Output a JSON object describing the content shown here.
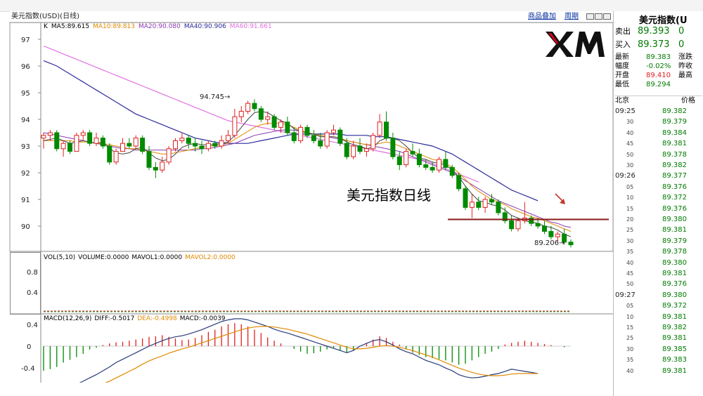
{
  "header": {
    "symbol_label": "美元指数(USD)(日线)",
    "commodity_link": "商品叠加",
    "period_link": "周期"
  },
  "price_pane": {
    "ma_legend": [
      {
        "text": "K",
        "color": "#000000"
      },
      {
        "text": "MA5:89.615",
        "color": "#000000"
      },
      {
        "text": "MA10:89.813",
        "color": "#e08a00"
      },
      {
        "text": "MA20:90.080",
        "color": "#8a3bb0"
      },
      {
        "text": "MA40:90.906",
        "color": "#2a2a9a"
      },
      {
        "text": "MA60:91.661",
        "color": "#e070e0"
      }
    ],
    "high_label": "94.745",
    "low_label": "89.206",
    "annotation": "美元指数日线"
  },
  "volume_pane": {
    "legend": [
      {
        "text": "VOL(5,10)",
        "color": "#000000"
      },
      {
        "text": "VOLUME:0.0000",
        "color": "#000000"
      },
      {
        "text": "MAVOL1:0.0000",
        "color": "#000000"
      },
      {
        "text": "MAVOL2:0.0000",
        "color": "#e08a00"
      }
    ]
  },
  "macd_pane": {
    "legend": [
      {
        "text": "MACD(12,26,9)",
        "color": "#000000"
      },
      {
        "text": "DIFF:-0.5017",
        "color": "#000000"
      },
      {
        "text": "DEA:-0.4998",
        "color": "#e08a00"
      },
      {
        "text": "MACD:-0.0039",
        "color": "#000000"
      }
    ]
  },
  "colors": {
    "up": "#e02020",
    "down": "#008a00",
    "hline": "#8b1a1a"
  },
  "chart_data": {
    "type": "candlestick",
    "price_axis": {
      "ticks": [
        97,
        96,
        95,
        94,
        93,
        92,
        91,
        90
      ]
    },
    "volume_axis": {
      "ticks": [
        "0.8",
        "0.4"
      ]
    },
    "macd_axis": {
      "ticks": [
        "0.4",
        "0",
        "-0.4"
      ]
    },
    "horizontal_line": 90.25,
    "candles": [
      [
        93.3,
        93.5,
        92.9,
        93.4
      ],
      [
        93.4,
        93.6,
        93.2,
        93.5
      ],
      [
        93.5,
        93.6,
        92.8,
        92.9
      ],
      [
        92.9,
        93.2,
        92.6,
        93.1
      ],
      [
        93.1,
        93.2,
        92.7,
        92.8
      ],
      [
        92.8,
        93.5,
        92.8,
        93.4
      ],
      [
        93.4,
        93.6,
        93.2,
        93.5
      ],
      [
        93.5,
        93.6,
        93.0,
        93.1
      ],
      [
        93.1,
        93.5,
        93.0,
        93.3
      ],
      [
        93.3,
        93.4,
        92.9,
        93.0
      ],
      [
        93.0,
        93.1,
        92.3,
        92.4
      ],
      [
        92.4,
        92.9,
        92.3,
        92.8
      ],
      [
        92.8,
        93.3,
        92.8,
        93.1
      ],
      [
        93.1,
        93.3,
        92.9,
        93.0
      ],
      [
        93.0,
        93.4,
        92.9,
        93.3
      ],
      [
        93.3,
        93.4,
        92.7,
        92.8
      ],
      [
        92.8,
        93.0,
        92.1,
        92.2
      ],
      [
        92.2,
        92.4,
        91.8,
        92.1
      ],
      [
        92.1,
        92.6,
        92.0,
        92.4
      ],
      [
        92.4,
        93.0,
        92.3,
        92.9
      ],
      [
        92.9,
        93.3,
        92.8,
        93.2
      ],
      [
        93.2,
        93.5,
        93.1,
        93.3
      ],
      [
        93.3,
        93.4,
        92.9,
        93.1
      ],
      [
        93.1,
        93.3,
        92.8,
        93.0
      ],
      [
        93.0,
        93.2,
        92.7,
        92.9
      ],
      [
        92.9,
        93.2,
        92.8,
        93.1
      ],
      [
        93.1,
        93.2,
        92.9,
        93.0
      ],
      [
        93.0,
        93.4,
        92.9,
        93.2
      ],
      [
        93.2,
        93.6,
        93.1,
        93.4
      ],
      [
        93.4,
        94.4,
        93.3,
        94.1
      ],
      [
        94.1,
        94.5,
        93.9,
        94.3
      ],
      [
        94.3,
        94.7,
        94.2,
        94.6
      ],
      [
        94.6,
        94.75,
        94.3,
        94.4
      ],
      [
        94.4,
        94.5,
        93.9,
        94.0
      ],
      [
        94.0,
        94.3,
        93.8,
        94.1
      ],
      [
        94.1,
        94.2,
        93.6,
        93.7
      ],
      [
        93.7,
        94.0,
        93.5,
        93.9
      ],
      [
        93.9,
        94.1,
        93.4,
        93.5
      ],
      [
        93.5,
        93.7,
        93.1,
        93.2
      ],
      [
        93.2,
        93.8,
        93.1,
        93.7
      ],
      [
        93.7,
        93.8,
        93.3,
        93.4
      ],
      [
        93.4,
        93.6,
        93.1,
        93.2
      ],
      [
        93.2,
        93.5,
        92.9,
        93.0
      ],
      [
        93.0,
        93.6,
        92.9,
        93.5
      ],
      [
        93.5,
        93.8,
        93.4,
        93.6
      ],
      [
        93.6,
        93.7,
        93.0,
        93.1
      ],
      [
        93.1,
        93.3,
        92.5,
        92.6
      ],
      [
        92.6,
        93.2,
        92.5,
        93.0
      ],
      [
        93.0,
        93.3,
        92.7,
        92.8
      ],
      [
        92.8,
        93.1,
        92.6,
        92.9
      ],
      [
        92.9,
        93.5,
        92.8,
        93.4
      ],
      [
        93.4,
        94.2,
        93.3,
        93.9
      ],
      [
        93.9,
        94.3,
        93.2,
        93.3
      ],
      [
        93.3,
        93.5,
        92.5,
        92.6
      ],
      [
        92.6,
        92.8,
        92.1,
        92.3
      ],
      [
        92.3,
        92.9,
        92.2,
        92.8
      ],
      [
        92.8,
        93.1,
        92.6,
        92.7
      ],
      [
        92.7,
        92.9,
        92.2,
        92.3
      ],
      [
        92.3,
        92.5,
        92.1,
        92.2
      ],
      [
        92.2,
        92.4,
        92.0,
        92.1
      ],
      [
        92.1,
        92.6,
        92.0,
        92.5
      ],
      [
        92.5,
        92.8,
        92.1,
        92.2
      ],
      [
        92.2,
        92.3,
        91.8,
        91.9
      ],
      [
        91.9,
        92.0,
        91.3,
        91.4
      ],
      [
        91.4,
        91.5,
        90.6,
        90.7
      ],
      [
        90.7,
        91.2,
        90.3,
        90.9
      ],
      [
        90.9,
        91.1,
        90.6,
        90.7
      ],
      [
        90.7,
        91.1,
        90.5,
        91.0
      ],
      [
        91.0,
        91.2,
        90.8,
        90.9
      ],
      [
        90.9,
        91.0,
        90.4,
        90.5
      ],
      [
        90.5,
        90.7,
        90.1,
        90.2
      ],
      [
        90.2,
        90.4,
        89.8,
        89.9
      ],
      [
        89.9,
        90.3,
        89.8,
        90.2
      ],
      [
        90.2,
        90.9,
        90.1,
        90.3
      ],
      [
        90.3,
        90.4,
        90.0,
        90.1
      ],
      [
        90.1,
        90.3,
        89.9,
        90.0
      ],
      [
        90.0,
        90.2,
        89.7,
        89.8
      ],
      [
        89.8,
        90.0,
        89.5,
        89.6
      ],
      [
        89.6,
        89.8,
        89.4,
        89.7
      ],
      [
        89.7,
        89.9,
        89.3,
        89.4
      ],
      [
        89.4,
        89.5,
        89.2,
        89.3
      ]
    ],
    "ma5": [
      93.2,
      93.25,
      93.3,
      93.2,
      93.1,
      93.15,
      93.2,
      93.15,
      93.1,
      93.15,
      92.9,
      92.75,
      92.7,
      92.75,
      92.9,
      92.95,
      92.75,
      92.55,
      92.45,
      92.5,
      92.7,
      92.95,
      93.05,
      93.1,
      93.05,
      93.05,
      93.05,
      93.1,
      93.15,
      93.4,
      93.7,
      94.0,
      94.25,
      94.3,
      94.25,
      94.1,
      93.95,
      93.85,
      93.65,
      93.55,
      93.5,
      93.45,
      93.35,
      93.35,
      93.35,
      93.3,
      93.15,
      93.05,
      93.0,
      92.9,
      92.95,
      93.2,
      93.3,
      93.3,
      93.2,
      93.0,
      92.75,
      92.55,
      92.5,
      92.4,
      92.35,
      92.3,
      92.1,
      91.85,
      91.5,
      91.2,
      90.95,
      90.9,
      90.8,
      90.75,
      90.6,
      90.4,
      90.3,
      90.2,
      90.15,
      90.1,
      90.0,
      89.95,
      89.85,
      89.7,
      89.6
    ],
    "ma10": [
      93.2,
      93.2,
      93.2,
      93.2,
      93.2,
      93.15,
      93.15,
      93.15,
      93.1,
      93.1,
      93.05,
      93.0,
      92.95,
      92.9,
      92.9,
      92.85,
      92.8,
      92.75,
      92.7,
      92.7,
      92.75,
      92.8,
      92.85,
      92.9,
      92.95,
      93.0,
      93.0,
      93.05,
      93.1,
      93.25,
      93.4,
      93.55,
      93.7,
      93.8,
      93.85,
      93.85,
      93.85,
      93.8,
      93.7,
      93.6,
      93.5,
      93.45,
      93.4,
      93.35,
      93.35,
      93.3,
      93.2,
      93.15,
      93.1,
      93.05,
      93.05,
      93.1,
      93.15,
      93.1,
      93.0,
      92.9,
      92.8,
      92.7,
      92.6,
      92.5,
      92.45,
      92.35,
      92.2,
      92.0,
      91.75,
      91.5,
      91.3,
      91.15,
      91.0,
      90.9,
      90.8,
      90.65,
      90.55,
      90.45,
      90.35,
      90.3,
      90.2,
      90.1,
      90.0,
      89.9,
      89.8
    ],
    "ma20": [
      93.5,
      93.45,
      93.4,
      93.35,
      93.3,
      93.25,
      93.2,
      93.15,
      93.1,
      93.05,
      93.0,
      92.95,
      92.9,
      92.9,
      92.85,
      92.85,
      92.85,
      92.85,
      92.85,
      92.85,
      92.85,
      92.85,
      92.85,
      92.85,
      92.9,
      92.9,
      92.95,
      93.0,
      93.05,
      93.1,
      93.2,
      93.3,
      93.4,
      93.45,
      93.5,
      93.55,
      93.6,
      93.6,
      93.6,
      93.55,
      93.5,
      93.45,
      93.4,
      93.35,
      93.3,
      93.25,
      93.2,
      93.15,
      93.1,
      93.05,
      93.0,
      92.95,
      92.9,
      92.85,
      92.8,
      92.7,
      92.6,
      92.5,
      92.4,
      92.3,
      92.2,
      92.1,
      92.0,
      91.85,
      91.7,
      91.55,
      91.4,
      91.25,
      91.1,
      90.95,
      90.85,
      90.75,
      90.65,
      90.55,
      90.45,
      90.35,
      90.25,
      90.15,
      90.1,
      90.0,
      89.95
    ],
    "ma40": [
      96.2,
      96.1,
      96.0,
      95.85,
      95.7,
      95.55,
      95.4,
      95.25,
      95.1,
      94.95,
      94.8,
      94.65,
      94.5,
      94.35,
      94.2,
      94.1,
      94.0,
      93.9,
      93.8,
      93.7,
      93.6,
      93.5,
      93.4,
      93.3,
      93.25,
      93.2,
      93.15,
      93.1,
      93.1,
      93.1,
      93.1,
      93.1,
      93.15,
      93.2,
      93.25,
      93.3,
      93.35,
      93.4,
      93.45,
      93.45,
      93.45,
      93.45,
      93.45,
      93.45,
      93.45,
      93.45,
      93.4,
      93.4,
      93.4,
      93.4,
      93.35,
      93.35,
      93.35,
      93.3,
      93.25,
      93.2,
      93.15,
      93.1,
      93.05,
      93.0,
      92.9,
      92.8,
      92.7,
      92.55,
      92.4,
      92.25,
      92.1,
      91.95,
      91.8,
      91.65,
      91.5,
      91.35,
      91.25,
      91.15,
      91.05,
      90.95
    ],
    "ma60": [
      96.75,
      96.65,
      96.55,
      96.45,
      96.35,
      96.25,
      96.15,
      96.05,
      95.95,
      95.85,
      95.75,
      95.65,
      95.55,
      95.45,
      95.35,
      95.25,
      95.15,
      95.05,
      94.95,
      94.85,
      94.75,
      94.65,
      94.55,
      94.45,
      94.35,
      94.25,
      94.15,
      94.05,
      93.95,
      93.9,
      93.85,
      93.8,
      93.75,
      93.7,
      93.65,
      93.6,
      93.55,
      93.5,
      93.45,
      93.4,
      93.35,
      93.3,
      93.25,
      93.2,
      93.15,
      93.1,
      93.05,
      93.0,
      92.95,
      92.9,
      92.85,
      92.8,
      92.75,
      92.7,
      92.65,
      92.6,
      92.55,
      92.5,
      92.45,
      92.35,
      92.25,
      92.15,
      92.05,
      91.95,
      91.85,
      91.75,
      91.65
    ],
    "macd_hist": [
      -0.45,
      -0.42,
      -0.38,
      -0.3,
      -0.25,
      -0.2,
      -0.14,
      -0.06,
      -0.03,
      0.02,
      0.05,
      0.07,
      0.08,
      0.1,
      0.12,
      0.14,
      0.17,
      0.18,
      0.2,
      0.17,
      0.14,
      0.11,
      0.12,
      0.15,
      0.2,
      0.26,
      0.3,
      0.36,
      0.4,
      0.42,
      0.4,
      0.36,
      0.3,
      0.24,
      0.16,
      0.1,
      0.05,
      0.0,
      -0.05,
      -0.1,
      -0.14,
      -0.13,
      -0.1,
      -0.06,
      -0.03,
      -0.08,
      -0.12,
      -0.08,
      0.0,
      0.06,
      0.12,
      0.18,
      0.15,
      0.08,
      0.03,
      -0.06,
      -0.12,
      -0.16,
      -0.2,
      -0.22,
      -0.24,
      -0.26,
      -0.3,
      -0.34,
      -0.32,
      -0.26,
      -0.2,
      -0.14,
      -0.1,
      -0.05,
      0.03,
      0.06,
      0.08,
      0.1,
      0.08,
      0.06,
      0.04,
      0.02,
      0.0,
      -0.02
    ],
    "diff": [
      -0.95,
      -0.9,
      -0.85,
      -0.8,
      -0.75,
      -0.7,
      -0.64,
      -0.58,
      -0.52,
      -0.45,
      -0.38,
      -0.3,
      -0.24,
      -0.18,
      -0.12,
      -0.06,
      0.0,
      0.05,
      0.1,
      0.14,
      0.17,
      0.19,
      0.22,
      0.26,
      0.3,
      0.35,
      0.4,
      0.45,
      0.48,
      0.5,
      0.5,
      0.48,
      0.44,
      0.4,
      0.36,
      0.31,
      0.27,
      0.24,
      0.2,
      0.16,
      0.12,
      0.08,
      0.04,
      0.0,
      -0.04,
      -0.08,
      -0.12,
      -0.08,
      0.0,
      0.05,
      0.1,
      0.12,
      0.08,
      0.02,
      -0.05,
      -0.1,
      -0.14,
      -0.2,
      -0.26,
      -0.3,
      -0.34,
      -0.4,
      -0.45,
      -0.52,
      -0.56,
      -0.58,
      -0.57,
      -0.55,
      -0.52,
      -0.5,
      -0.46,
      -0.42,
      -0.44,
      -0.46,
      -0.48,
      -0.5
    ],
    "dea": [
      -1.0,
      -0.98,
      -0.96,
      -0.93,
      -0.9,
      -0.86,
      -0.82,
      -0.78,
      -0.74,
      -0.69,
      -0.64,
      -0.58,
      -0.52,
      -0.46,
      -0.4,
      -0.33,
      -0.27,
      -0.22,
      -0.18,
      -0.13,
      -0.09,
      -0.05,
      -0.02,
      0.02,
      0.06,
      0.1,
      0.14,
      0.18,
      0.22,
      0.26,
      0.3,
      0.33,
      0.35,
      0.36,
      0.36,
      0.35,
      0.33,
      0.31,
      0.28,
      0.25,
      0.22,
      0.18,
      0.14,
      0.1,
      0.06,
      0.02,
      -0.02,
      -0.05,
      -0.05,
      -0.04,
      -0.02,
      0.0,
      0.01,
      0.0,
      -0.02,
      -0.05,
      -0.08,
      -0.12,
      -0.16,
      -0.2,
      -0.25,
      -0.3,
      -0.35,
      -0.4,
      -0.44,
      -0.48,
      -0.51,
      -0.53,
      -0.54,
      -0.54,
      -0.53,
      -0.51,
      -0.5,
      -0.5,
      -0.5,
      -0.5
    ]
  },
  "quote_panel": {
    "title": "美元指数(U",
    "sell_label": "卖出",
    "sell_value": "89.393",
    "sell_vol": "0",
    "buy_label": "买入",
    "buy_value": "89.373",
    "buy_vol": "0",
    "stats": [
      {
        "label": "最新",
        "value": "89.383",
        "label2": "涨跌",
        "color": "#007a00"
      },
      {
        "label": "幅度",
        "value": "-0.02%",
        "label2": "昨收",
        "color": "#007a00"
      },
      {
        "label": "开盘",
        "value": "89.410",
        "label2": "最高",
        "color": "#e02020"
      },
      {
        "label": "最低",
        "value": "89.294",
        "label2": "",
        "color": "#007a00"
      }
    ],
    "col_city": "北京",
    "col_price": "价格",
    "ticks": [
      {
        "time": "09:25",
        "sub": false,
        "price": "89.382"
      },
      {
        "time": "30",
        "sub": true,
        "price": "89.379"
      },
      {
        "time": "40",
        "sub": true,
        "price": "89.384"
      },
      {
        "time": "45",
        "sub": true,
        "price": "89.381"
      },
      {
        "time": "50",
        "sub": true,
        "price": "89.378"
      },
      {
        "time": "30",
        "sub": true,
        "price": "89.382"
      },
      {
        "time": "09:26",
        "sub": false,
        "price": "89.377"
      },
      {
        "time": "05",
        "sub": true,
        "price": "89.376"
      },
      {
        "time": "10",
        "sub": true,
        "price": "89.372"
      },
      {
        "time": "15",
        "sub": true,
        "price": "89.376"
      },
      {
        "time": "20",
        "sub": true,
        "price": "89.380"
      },
      {
        "time": "25",
        "sub": true,
        "price": "89.381"
      },
      {
        "time": "30",
        "sub": true,
        "price": "89.379"
      },
      {
        "time": "35",
        "sub": true,
        "price": "89.378"
      },
      {
        "time": "40",
        "sub": true,
        "price": "89.380"
      },
      {
        "time": "45",
        "sub": true,
        "price": "89.381"
      },
      {
        "time": "50",
        "sub": true,
        "price": "89.376"
      },
      {
        "time": "09:27",
        "sub": false,
        "price": "89.380"
      },
      {
        "time": "05",
        "sub": true,
        "price": "89.372"
      },
      {
        "time": "10",
        "sub": true,
        "price": "89.381"
      },
      {
        "time": "15",
        "sub": true,
        "price": "89.382"
      },
      {
        "time": "25",
        "sub": true,
        "price": "89.381"
      },
      {
        "time": "30",
        "sub": true,
        "price": "89.385"
      },
      {
        "time": "35",
        "sub": true,
        "price": "89.383"
      },
      {
        "time": "40",
        "sub": true,
        "price": "89.381"
      }
    ]
  }
}
